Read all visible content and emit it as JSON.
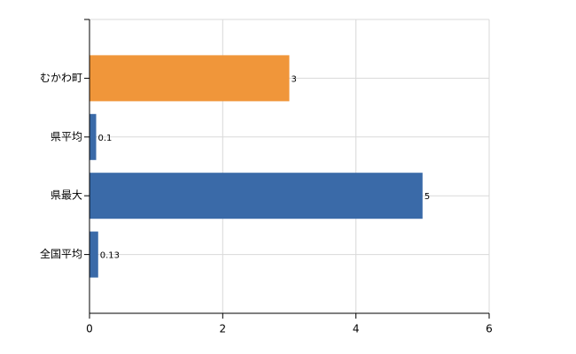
{
  "chart_data": {
    "type": "bar",
    "orientation": "horizontal",
    "categories": [
      "むかわ町",
      "県平均",
      "県最大",
      "全国平均"
    ],
    "values": [
      3,
      0.1,
      5,
      0.13
    ],
    "colors": [
      "#f0963a",
      "#3a6aa8",
      "#3a6aa8",
      "#3a6aa8"
    ],
    "xlim": [
      0,
      6
    ],
    "xticks": [
      0,
      2,
      4,
      6
    ],
    "grid": true
  }
}
